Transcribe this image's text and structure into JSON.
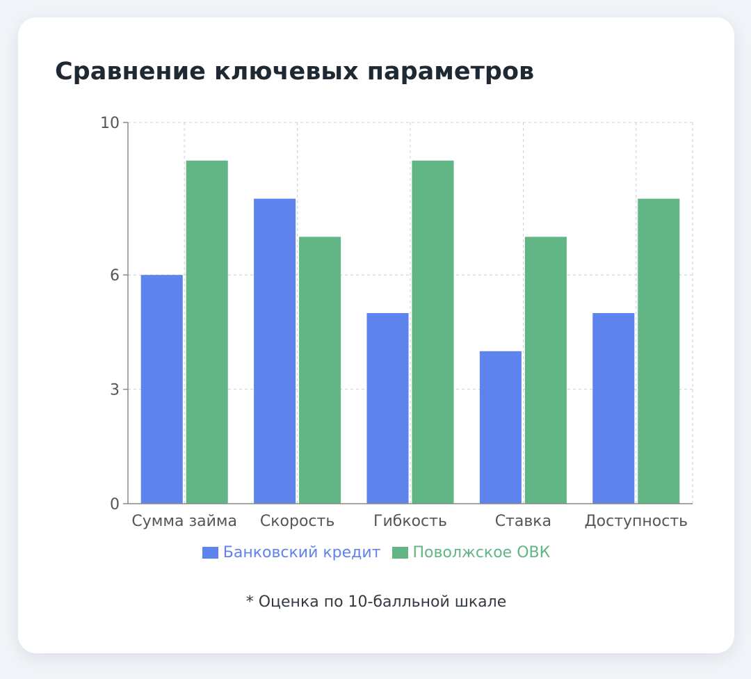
{
  "title": "Сравнение ключевых параметров",
  "note": "* Оценка по 10-балльной шкале",
  "colors": {
    "bank": "#5f83ec",
    "ovk": "#62b584",
    "grid": "#c9cdd2",
    "axis": "#888888",
    "tick_text": "#555555"
  },
  "chart_data": {
    "type": "bar",
    "categories": [
      "Сумма займа",
      "Скорость",
      "Гибкость",
      "Ставка",
      "Доступность"
    ],
    "series": [
      {
        "name": "Банковский кредит",
        "values": [
          6,
          8,
          5,
          4,
          5
        ]
      },
      {
        "name": "Поволжское ОВК",
        "values": [
          9,
          7,
          9,
          7,
          8
        ]
      }
    ],
    "yticks": [
      0,
      3,
      6,
      10
    ],
    "ylim": [
      0,
      10
    ],
    "xlabel": "",
    "ylabel": "",
    "grid": true,
    "legend": "bottom"
  }
}
